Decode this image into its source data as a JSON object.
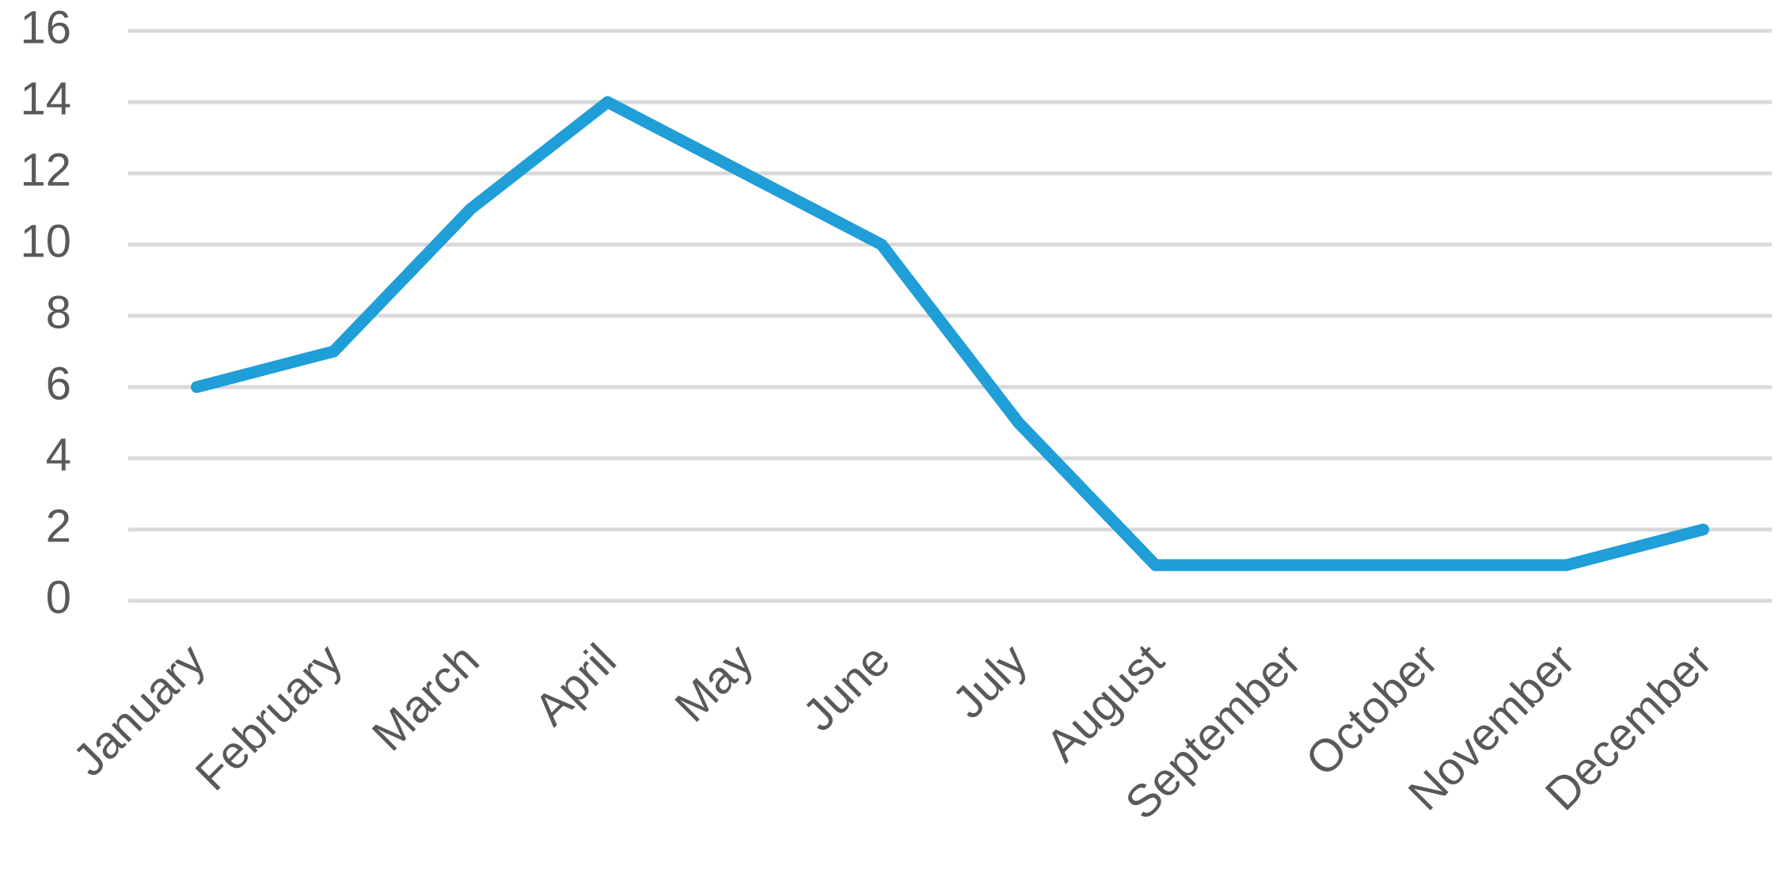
{
  "chart_data": {
    "type": "line",
    "categories": [
      "January",
      "February",
      "March",
      "April",
      "May",
      "June",
      "July",
      "August",
      "September",
      "October",
      "November",
      "December"
    ],
    "values": [
      6,
      7,
      11,
      14,
      12,
      10,
      5,
      1,
      1,
      1,
      1,
      2
    ],
    "color": "#1f9ed8",
    "ylim": [
      0,
      16
    ],
    "yticks": [
      0,
      2,
      4,
      6,
      8,
      10,
      12,
      14,
      16
    ],
    "grid": true
  }
}
